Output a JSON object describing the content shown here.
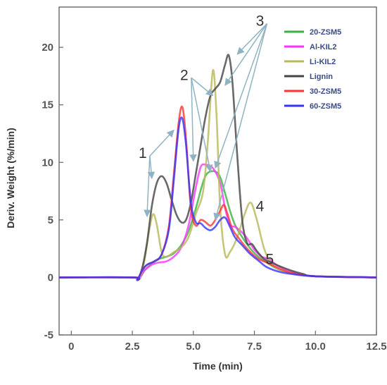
{
  "chart_data": {
    "type": "line",
    "title": "",
    "xlabel": "Time (min)",
    "ylabel": "Deriv. Weight (%/min)",
    "xlim": [
      -0.5,
      12.5
    ],
    "ylim": [
      -5,
      23.5
    ],
    "xticks": [
      0,
      2.5,
      5.0,
      7.5,
      10.0,
      12.5
    ],
    "xtick_labels": [
      "0",
      "2.5",
      "5.0",
      "7.5",
      "10.0",
      "12.5"
    ],
    "yticks": [
      -5,
      0,
      5,
      10,
      15,
      20
    ],
    "ytick_labels": [
      "-5",
      "0",
      "5",
      "10",
      "15",
      "20"
    ],
    "grid": false,
    "legend_position": "top-right",
    "series": [
      {
        "name": "20-ZSM5",
        "color": "#3cb043",
        "points": [
          [
            -0.5,
            0
          ],
          [
            2.5,
            0
          ],
          [
            2.8,
            0
          ],
          [
            3.0,
            0.6
          ],
          [
            3.3,
            1.2
          ],
          [
            3.6,
            1.6
          ],
          [
            3.9,
            1.8
          ],
          [
            4.2,
            2.1
          ],
          [
            4.5,
            2.8
          ],
          [
            4.8,
            4.0
          ],
          [
            5.1,
            6.0
          ],
          [
            5.4,
            8.3
          ],
          [
            5.6,
            9.1
          ],
          [
            5.9,
            9.2
          ],
          [
            6.1,
            8.7
          ],
          [
            6.3,
            7.3
          ],
          [
            6.5,
            5.8
          ],
          [
            6.7,
            4.6
          ],
          [
            7.0,
            3.5
          ],
          [
            7.3,
            2.6
          ],
          [
            7.6,
            1.9
          ],
          [
            8.0,
            1.3
          ],
          [
            8.5,
            0.7
          ],
          [
            9.0,
            0.4
          ],
          [
            10.0,
            0.1
          ],
          [
            12.5,
            0
          ]
        ]
      },
      {
        "name": "Al-KIL2",
        "color": "#ff33ff",
        "points": [
          [
            -0.5,
            0
          ],
          [
            2.5,
            0
          ],
          [
            2.8,
            0
          ],
          [
            3.0,
            0.6
          ],
          [
            3.3,
            1.1
          ],
          [
            3.6,
            1.3
          ],
          [
            3.9,
            1.4
          ],
          [
            4.2,
            1.8
          ],
          [
            4.5,
            2.6
          ],
          [
            4.8,
            4.5
          ],
          [
            5.1,
            7.8
          ],
          [
            5.3,
            9.6
          ],
          [
            5.5,
            9.8
          ],
          [
            5.8,
            9.5
          ],
          [
            6.1,
            8.2
          ],
          [
            6.3,
            6.0
          ],
          [
            6.5,
            4.6
          ],
          [
            6.7,
            4.4
          ],
          [
            6.9,
            4.1
          ],
          [
            7.2,
            3.4
          ],
          [
            7.5,
            2.4
          ],
          [
            7.8,
            1.8
          ],
          [
            8.1,
            1.6
          ],
          [
            8.4,
            1.1
          ],
          [
            9.0,
            0.5
          ],
          [
            10.0,
            0.1
          ],
          [
            12.5,
            0
          ]
        ]
      },
      {
        "name": "Li-KIL2",
        "color": "#b8b85a",
        "points": [
          [
            -0.5,
            0
          ],
          [
            2.5,
            0
          ],
          [
            2.8,
            0
          ],
          [
            3.0,
            1.5
          ],
          [
            3.2,
            4.2
          ],
          [
            3.35,
            5.5
          ],
          [
            3.5,
            4.6
          ],
          [
            3.7,
            2.2
          ],
          [
            3.9,
            1.8
          ],
          [
            4.2,
            2.2
          ],
          [
            4.5,
            2.6
          ],
          [
            4.8,
            3.5
          ],
          [
            5.1,
            5.5
          ],
          [
            5.4,
            7.5
          ],
          [
            5.6,
            12.0
          ],
          [
            5.8,
            18.0
          ],
          [
            5.95,
            14.0
          ],
          [
            6.1,
            6.0
          ],
          [
            6.3,
            2.0
          ],
          [
            6.5,
            2.2
          ],
          [
            6.8,
            3.5
          ],
          [
            7.1,
            5.5
          ],
          [
            7.35,
            6.5
          ],
          [
            7.6,
            5.0
          ],
          [
            7.9,
            2.5
          ],
          [
            8.2,
            1.2
          ],
          [
            8.6,
            0.6
          ],
          [
            9.2,
            0.3
          ],
          [
            10.0,
            0.1
          ],
          [
            12.5,
            0
          ]
        ]
      },
      {
        "name": "Lignin",
        "color": "#444444",
        "points": [
          [
            -0.5,
            0
          ],
          [
            2.5,
            0
          ],
          [
            2.7,
            -0.2
          ],
          [
            2.9,
            0.8
          ],
          [
            3.1,
            3.0
          ],
          [
            3.3,
            6.2
          ],
          [
            3.5,
            8.2
          ],
          [
            3.7,
            8.8
          ],
          [
            3.9,
            8.2
          ],
          [
            4.1,
            6.8
          ],
          [
            4.3,
            5.5
          ],
          [
            4.5,
            4.8
          ],
          [
            4.7,
            5.0
          ],
          [
            4.9,
            6.5
          ],
          [
            5.1,
            9.0
          ],
          [
            5.3,
            11.5
          ],
          [
            5.5,
            14.0
          ],
          [
            5.7,
            15.8
          ],
          [
            5.9,
            16.4
          ],
          [
            6.1,
            17.0
          ],
          [
            6.3,
            18.5
          ],
          [
            6.45,
            19.3
          ],
          [
            6.6,
            17.0
          ],
          [
            6.8,
            10.5
          ],
          [
            7.0,
            5.0
          ],
          [
            7.2,
            3.0
          ],
          [
            7.4,
            2.9
          ],
          [
            7.6,
            2.3
          ],
          [
            7.9,
            1.6
          ],
          [
            8.2,
            1.3
          ],
          [
            8.5,
            1.0
          ],
          [
            9.0,
            0.6
          ],
          [
            9.5,
            0.3
          ],
          [
            10.0,
            0.1
          ],
          [
            12.5,
            0
          ]
        ]
      },
      {
        "name": "30-ZSM5",
        "color": "#ff3333",
        "points": [
          [
            -0.5,
            0
          ],
          [
            2.5,
            0
          ],
          [
            2.7,
            -0.2
          ],
          [
            2.9,
            0.6
          ],
          [
            3.1,
            1.1
          ],
          [
            3.4,
            1.4
          ],
          [
            3.7,
            2.0
          ],
          [
            4.0,
            4.5
          ],
          [
            4.2,
            9.0
          ],
          [
            4.4,
            13.5
          ],
          [
            4.55,
            14.8
          ],
          [
            4.7,
            12.0
          ],
          [
            4.9,
            6.0
          ],
          [
            5.1,
            4.5
          ],
          [
            5.3,
            5.0
          ],
          [
            5.5,
            4.8
          ],
          [
            5.7,
            4.5
          ],
          [
            5.9,
            5.0
          ],
          [
            6.1,
            5.8
          ],
          [
            6.25,
            6.3
          ],
          [
            6.4,
            5.5
          ],
          [
            6.6,
            4.2
          ],
          [
            6.9,
            3.3
          ],
          [
            7.2,
            2.5
          ],
          [
            7.6,
            1.7
          ],
          [
            8.0,
            1.3
          ],
          [
            8.5,
            0.8
          ],
          [
            9.0,
            0.4
          ],
          [
            10.0,
            0.1
          ],
          [
            12.5,
            0
          ]
        ]
      },
      {
        "name": "60-ZSM5",
        "color": "#3333ff",
        "points": [
          [
            -0.5,
            0
          ],
          [
            2.5,
            0
          ],
          [
            2.7,
            -0.2
          ],
          [
            2.9,
            0.6
          ],
          [
            3.1,
            1.1
          ],
          [
            3.4,
            1.4
          ],
          [
            3.7,
            2.0
          ],
          [
            4.0,
            4.2
          ],
          [
            4.2,
            8.5
          ],
          [
            4.4,
            13.0
          ],
          [
            4.55,
            13.8
          ],
          [
            4.7,
            11.5
          ],
          [
            4.9,
            6.5
          ],
          [
            5.1,
            4.8
          ],
          [
            5.3,
            4.7
          ],
          [
            5.5,
            4.3
          ],
          [
            5.7,
            4.1
          ],
          [
            5.9,
            4.4
          ],
          [
            6.1,
            5.0
          ],
          [
            6.3,
            5.2
          ],
          [
            6.5,
            4.4
          ],
          [
            6.7,
            3.5
          ],
          [
            7.0,
            2.8
          ],
          [
            7.3,
            2.1
          ],
          [
            7.7,
            1.4
          ],
          [
            8.0,
            0.9
          ],
          [
            8.5,
            0.5
          ],
          [
            9.0,
            0.3
          ],
          [
            10.0,
            0.1
          ],
          [
            12.5,
            0
          ]
        ]
      }
    ],
    "annotations": [
      {
        "text": "1",
        "x": 3.1,
        "y": 10.8,
        "arrows": [
          [
            4.2,
            12.8
          ],
          [
            3.3,
            8.6
          ],
          [
            3.1,
            5.3
          ]
        ]
      },
      {
        "text": "2",
        "x": 4.8,
        "y": 17.6,
        "arrows": [
          [
            5.0,
            10.1
          ],
          [
            5.7,
            9.2
          ],
          [
            5.8,
            15.8
          ]
        ]
      },
      {
        "text": "3",
        "x": 7.9,
        "y": 22.3,
        "arrows": [
          [
            6.8,
            19.4
          ],
          [
            6.3,
            16.7
          ],
          [
            5.9,
            9.5
          ],
          [
            5.9,
            5.0
          ]
        ]
      },
      {
        "text": "4",
        "x": 7.9,
        "y": 6.2,
        "arrows": []
      },
      {
        "text": "5",
        "x": 8.3,
        "y": 1.6,
        "arrows": []
      }
    ]
  }
}
